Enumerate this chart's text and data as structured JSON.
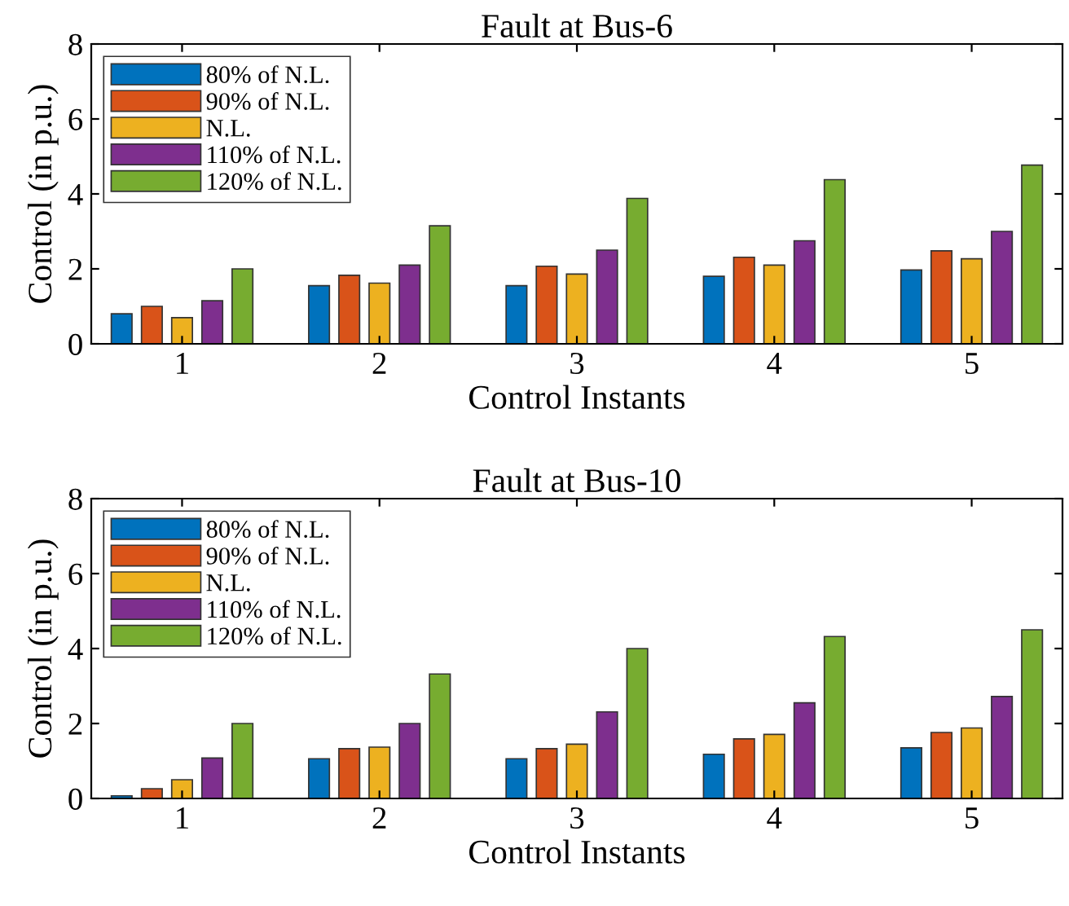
{
  "chart_data": [
    {
      "type": "bar",
      "title": "Fault at Bus-6",
      "xlabel": "Control Instants",
      "ylabel": "Control (in p.u.)",
      "categories": [
        "1",
        "2",
        "3",
        "4",
        "5"
      ],
      "ylim": [
        0,
        8
      ],
      "yticks": [
        0,
        2,
        4,
        6,
        8
      ],
      "legend": "top left",
      "grid": false,
      "series": [
        {
          "name": "80% of N.L.",
          "color": "#0072bd",
          "values": [
            0.8,
            1.55,
            1.55,
            1.8,
            1.97
          ]
        },
        {
          "name": "90% of N.L.",
          "color": "#d95319",
          "values": [
            1.0,
            1.83,
            2.07,
            2.31,
            2.48
          ]
        },
        {
          "name": "N.L.",
          "color": "#edb120",
          "values": [
            0.7,
            1.62,
            1.86,
            2.1,
            2.27
          ]
        },
        {
          "name": "110% of N.L.",
          "color": "#7e2f8e",
          "values": [
            1.15,
            2.1,
            2.5,
            2.75,
            3.0
          ]
        },
        {
          "name": "120% of N.L.",
          "color": "#77ac30",
          "values": [
            2.0,
            3.15,
            3.88,
            4.38,
            4.77
          ]
        }
      ]
    },
    {
      "type": "bar",
      "title": "Fault at Bus-10",
      "xlabel": "Control Instants",
      "ylabel": "Control (in p.u.)",
      "categories": [
        "1",
        "2",
        "3",
        "4",
        "5"
      ],
      "ylim": [
        0,
        8
      ],
      "yticks": [
        0,
        2,
        4,
        6,
        8
      ],
      "legend": "top left",
      "grid": false,
      "series": [
        {
          "name": "80% of N.L.",
          "color": "#0072bd",
          "values": [
            0.07,
            1.06,
            1.06,
            1.18,
            1.35
          ]
        },
        {
          "name": "90% of N.L.",
          "color": "#d95319",
          "values": [
            0.26,
            1.33,
            1.33,
            1.59,
            1.76
          ]
        },
        {
          "name": "N.L.",
          "color": "#edb120",
          "values": [
            0.5,
            1.37,
            1.45,
            1.71,
            1.88
          ]
        },
        {
          "name": "110% of N.L.",
          "color": "#7e2f8e",
          "values": [
            1.08,
            2.0,
            2.31,
            2.55,
            2.72
          ]
        },
        {
          "name": "120% of N.L.",
          "color": "#77ac30",
          "values": [
            2.0,
            3.32,
            4.0,
            4.32,
            4.5
          ]
        }
      ]
    }
  ]
}
